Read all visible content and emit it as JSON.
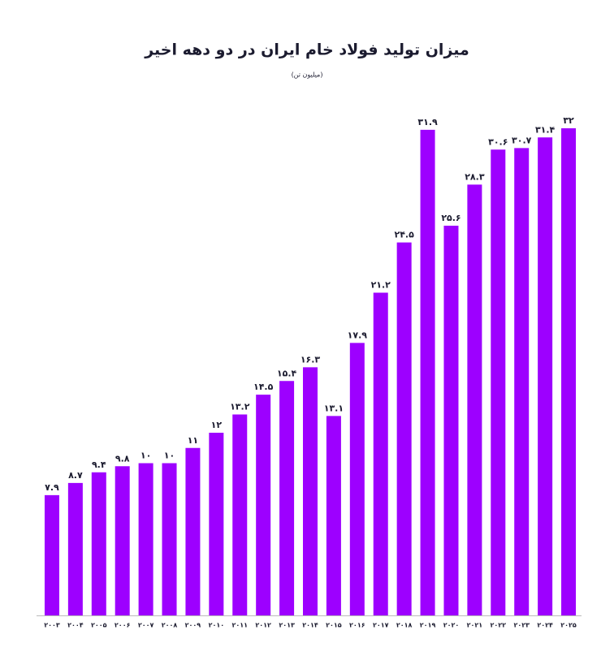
{
  "chart_data": {
    "type": "bar",
    "title": "میزان تولید فولاد خام ایران در دو دهه  اخیر",
    "subtitle": "(میلیون تن)",
    "categories": [
      "۲۰۰۳",
      "۲۰۰۴",
      "۲۰۰۵",
      "۲۰۰۶",
      "۲۰۰۷",
      "۲۰۰۸",
      "۲۰۰۹",
      "۲۰۱۰",
      "۲۰۱۱",
      "۲۰۱۲",
      "۲۰۱۳",
      "۲۰۱۴",
      "۲۰۱۵",
      "۲۰۱۶",
      "۲۰۱۷",
      "۲۰۱۸",
      "۲۰۱۹",
      "۲۰۲۰",
      "۲۰۲۱",
      "۲۰۲۲",
      "۲۰۲۳",
      "۲۰۲۴",
      "۲۰۲۵"
    ],
    "values": [
      7.9,
      8.7,
      9.4,
      9.8,
      10,
      10,
      11,
      12,
      13.2,
      14.5,
      15.4,
      16.3,
      13.1,
      17.9,
      21.2,
      24.5,
      31.9,
      25.6,
      28.3,
      30.6,
      30.7,
      31.4,
      32
    ],
    "value_labels": [
      "۷.۹",
      "۸.۷",
      "۹.۴",
      "۹.۸",
      "۱۰",
      "۱۰",
      "۱۱",
      "۱۲",
      "۱۳.۲",
      "۱۴.۵",
      "۱۵.۴",
      "۱۶.۳",
      "۱۳.۱",
      "۱۷.۹",
      "۲۱.۲",
      "۲۴.۵",
      "۳۱.۹",
      "۲۵.۶",
      "۲۸.۳",
      "۳۰.۶",
      "۳۰.۷",
      "۳۱.۴",
      "۳۲"
    ],
    "color": "#9d00ff",
    "ylim": [
      0,
      32
    ]
  }
}
